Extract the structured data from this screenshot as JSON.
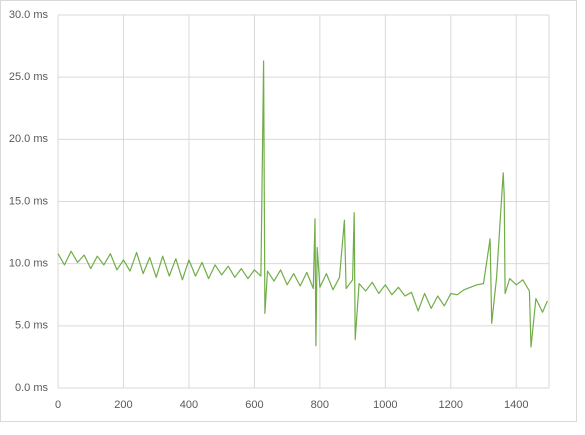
{
  "chart_data": {
    "type": "line",
    "x": [
      0,
      20,
      40,
      60,
      80,
      100,
      120,
      140,
      160,
      180,
      200,
      220,
      240,
      260,
      280,
      300,
      320,
      340,
      360,
      380,
      400,
      420,
      440,
      460,
      480,
      500,
      520,
      540,
      560,
      580,
      600,
      620,
      628,
      632,
      640,
      660,
      680,
      700,
      720,
      740,
      760,
      780,
      785,
      788,
      792,
      800,
      820,
      840,
      860,
      875,
      880,
      900,
      905,
      908,
      920,
      940,
      960,
      980,
      1000,
      1020,
      1040,
      1060,
      1080,
      1100,
      1120,
      1140,
      1160,
      1180,
      1200,
      1220,
      1240,
      1260,
      1280,
      1300,
      1320,
      1325,
      1340,
      1360,
      1363,
      1366,
      1380,
      1400,
      1420,
      1440,
      1445,
      1460,
      1480,
      1495
    ],
    "series": [
      {
        "color": "#70ad47",
        "values": [
          10.8,
          9.9,
          11.0,
          10.1,
          10.7,
          9.6,
          10.6,
          9.9,
          10.8,
          9.5,
          10.3,
          9.4,
          10.9,
          9.2,
          10.5,
          8.9,
          10.6,
          9.0,
          10.4,
          8.7,
          10.3,
          9.0,
          10.1,
          8.8,
          9.9,
          9.1,
          9.8,
          8.9,
          9.6,
          8.8,
          9.5,
          9.0,
          26.3,
          6.0,
          9.4,
          8.6,
          9.5,
          8.3,
          9.2,
          8.2,
          9.3,
          8.0,
          13.6,
          3.4,
          11.3,
          8.1,
          9.2,
          7.9,
          8.9,
          13.5,
          8.0,
          8.7,
          14.1,
          3.9,
          8.4,
          7.8,
          8.5,
          7.6,
          8.3,
          7.5,
          8.1,
          7.4,
          7.7,
          6.2,
          7.6,
          6.4,
          7.4,
          6.6,
          7.6,
          7.5,
          7.9,
          8.1,
          8.3,
          8.4,
          12.0,
          5.2,
          8.9,
          17.3,
          15.5,
          7.6,
          8.8,
          8.3,
          8.7,
          7.8,
          3.3,
          7.2,
          6.1,
          7.0
        ]
      }
    ],
    "xlim": [
      0,
      1500
    ],
    "xticks": [
      0,
      200,
      400,
      600,
      800,
      1000,
      1200,
      1400
    ],
    "ylim": [
      0,
      30
    ],
    "yticks": [
      {
        "value": 0,
        "label": "0.0 ms"
      },
      {
        "value": 5,
        "label": "5.0 ms"
      },
      {
        "value": 10,
        "label": "10.0 ms"
      },
      {
        "value": 15,
        "label": "15.0 ms"
      },
      {
        "value": 20,
        "label": "20.0 ms"
      },
      {
        "value": 25,
        "label": "25.0 ms"
      },
      {
        "value": 30,
        "label": "30.0 ms"
      }
    ],
    "grid": true
  }
}
